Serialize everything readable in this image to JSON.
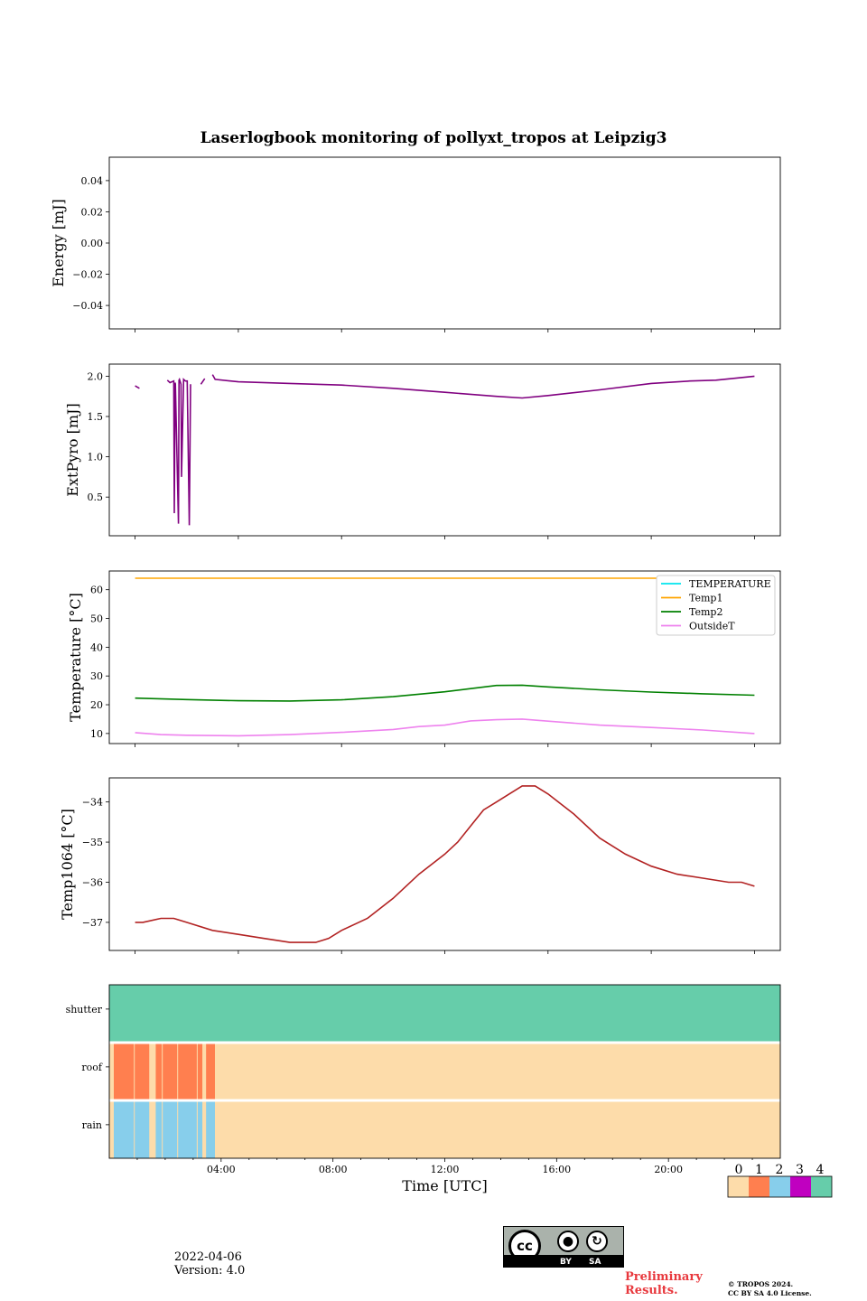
{
  "title": "Laserlogbook monitoring of pollyxt_tropos at Leipzig3",
  "colors": {
    "extpyro": "#800080",
    "temperature": "#00e5ee",
    "temp1": "#ffa500",
    "temp2": "#008000",
    "outsideT": "#ee82ee",
    "temp1064": "#b22222",
    "status0": "#fddcaa",
    "status1": "#ff7f4f",
    "status2": "#87ceeb",
    "status3": "#c000c0",
    "status4": "#66cdaa",
    "prelim": "#e8383d"
  },
  "chart_data": [
    {
      "id": "energy",
      "type": "line",
      "ylabel": "Energy [mJ]",
      "ylim": [
        -0.055,
        0.055
      ],
      "yticks": [
        0.04,
        0.02,
        0.0,
        -0.02,
        -0.04
      ],
      "ytick_labels": [
        "0.04",
        "0.02",
        "0.00",
        "−0.02",
        "−0.04"
      ],
      "series": []
    },
    {
      "id": "extpyro",
      "type": "line",
      "ylabel": "ExtPyro [mJ]",
      "ylim": [
        0.02,
        2.15
      ],
      "yticks": [
        2.0,
        1.5,
        1.0,
        0.5
      ],
      "ytick_labels": [
        "2.0",
        "1.5",
        "1.0",
        "0.5"
      ],
      "series": [
        {
          "name": "ExtPyro",
          "color": "extpyro",
          "segments": [
            {
              "x": [
                0.0,
                0.17
              ],
              "y": [
                1.88,
                1.85
              ]
            },
            {
              "x": [
                1.25,
                1.35,
                1.5,
                1.52,
                1.55,
                1.56,
                1.68,
                1.7,
                1.72,
                1.78,
                1.8,
                1.88,
                1.95,
                2.02,
                2.1,
                2.15
              ],
              "y": [
                1.95,
                1.92,
                1.94,
                0.3,
                1.92,
                1.9,
                0.17,
                1.95,
                1.96,
                1.9,
                0.75,
                1.96,
                1.94,
                1.94,
                0.15,
                1.9
              ]
            },
            {
              "x": [
                2.55,
                2.7
              ],
              "y": [
                1.9,
                1.97
              ]
            },
            {
              "x": [
                3.0,
                3.1,
                4,
                6,
                8,
                10,
                12,
                14,
                15,
                16,
                18,
                20,
                21.5,
                22.5,
                24
              ],
              "y": [
                2.02,
                1.96,
                1.93,
                1.91,
                1.89,
                1.85,
                1.8,
                1.75,
                1.73,
                1.76,
                1.83,
                1.91,
                1.94,
                1.95,
                2.0
              ]
            }
          ]
        }
      ]
    },
    {
      "id": "temperature",
      "type": "line",
      "ylabel": "Temperature [°C]",
      "ylim": [
        6.5,
        66.5
      ],
      "yticks": [
        60,
        50,
        40,
        30,
        20,
        10
      ],
      "ytick_labels": [
        "60",
        "50",
        "40",
        "30",
        "20",
        "10"
      ],
      "legend": "top-right",
      "series": [
        {
          "name": "TEMPERATURE",
          "color": "temperature",
          "x": [],
          "y": []
        },
        {
          "name": "Temp1",
          "color": "temp1",
          "x": [
            0,
            24
          ],
          "y": [
            64,
            64
          ]
        },
        {
          "name": "Temp2",
          "color": "temp2",
          "x": [
            0,
            2,
            4,
            6,
            8,
            10,
            12,
            13,
            14,
            15,
            16,
            18,
            20,
            22,
            24
          ],
          "y": [
            22.3,
            21.8,
            21.4,
            21.3,
            21.7,
            22.8,
            24.5,
            25.6,
            26.7,
            26.8,
            26.2,
            25.2,
            24.4,
            23.8,
            23.3
          ]
        },
        {
          "name": "OutsideT",
          "color": "outsideT",
          "x": [
            0,
            1,
            2,
            4,
            6,
            8,
            10,
            11,
            12,
            13,
            14,
            15,
            16,
            18,
            20,
            22,
            24
          ],
          "y": [
            10.3,
            9.6,
            9.4,
            9.2,
            9.6,
            10.4,
            11.4,
            12.4,
            12.9,
            14.4,
            14.8,
            15.0,
            14.3,
            12.9,
            12.1,
            11.2,
            10.0
          ]
        }
      ]
    },
    {
      "id": "temp1064",
      "type": "line",
      "ylabel": "Temp1064 [°C]",
      "ylim": [
        -37.7,
        -33.4
      ],
      "yticks": [
        -34,
        -35,
        -36,
        -37
      ],
      "ytick_labels": [
        "−34",
        "−35",
        "−36",
        "−37"
      ],
      "series": [
        {
          "name": "Temp1064",
          "color": "temp1064",
          "x": [
            0,
            0.3,
            1.0,
            1.5,
            2.0,
            3.0,
            4.0,
            5.0,
            6.0,
            7.0,
            7.5,
            8.0,
            9.0,
            10.0,
            10.5,
            11.0,
            12.0,
            12.5,
            13.0,
            13.5,
            14.0,
            14.5,
            15.0,
            15.5,
            16.0,
            17.0,
            18.0,
            19.0,
            20.0,
            21.0,
            22.0,
            23.0,
            23.5,
            24.0
          ],
          "y": [
            -37.0,
            -37.0,
            -36.9,
            -36.9,
            -37.0,
            -37.2,
            -37.3,
            -37.4,
            -37.5,
            -37.5,
            -37.4,
            -37.2,
            -36.9,
            -36.4,
            -36.1,
            -35.8,
            -35.3,
            -35.0,
            -34.6,
            -34.2,
            -34.0,
            -33.8,
            -33.6,
            -33.6,
            -33.8,
            -34.3,
            -34.9,
            -35.3,
            -35.6,
            -35.8,
            -35.9,
            -36.0,
            -36.0,
            -36.1
          ]
        }
      ]
    },
    {
      "id": "status",
      "type": "heatmap",
      "xlabel": "Time [UTC]",
      "xticks": [
        4,
        8,
        12,
        16,
        20
      ],
      "xtick_labels": [
        "04:00",
        "08:00",
        "12:00",
        "16:00",
        "20:00"
      ],
      "rows": [
        "shutter",
        "roof",
        "rain"
      ],
      "rain_wet_intervals": [
        [
          0.0,
          0.75
        ],
        [
          0.75,
          1.3
        ],
        [
          1.5,
          1.75
        ],
        [
          1.75,
          2.3
        ],
        [
          2.3,
          3.0
        ],
        [
          3.0,
          3.2
        ],
        [
          3.3,
          3.65
        ]
      ],
      "roof_open_intervals": [
        [
          0.0,
          0.75
        ],
        [
          0.75,
          1.3
        ],
        [
          1.5,
          1.75
        ],
        [
          1.75,
          2.3
        ],
        [
          2.3,
          3.0
        ],
        [
          3.0,
          3.2
        ],
        [
          3.3,
          3.65
        ]
      ],
      "shutter_value": 4,
      "colorbar": {
        "labels": [
          "0",
          "1",
          "2",
          "3",
          "4"
        ],
        "colors": [
          "status0",
          "status1",
          "status2",
          "status3",
          "status4"
        ]
      }
    }
  ],
  "footer": {
    "date": "2022-04-06",
    "version": "Version: 4.0",
    "preliminary_line1": "Preliminary",
    "preliminary_line2": "Results.",
    "copyright_line1": "© TROPOS 2024.",
    "copyright_line2": "CC BY SA 4.0 License.",
    "cc_label": "cc",
    "cc_by": "BY",
    "cc_sa": "SA"
  }
}
